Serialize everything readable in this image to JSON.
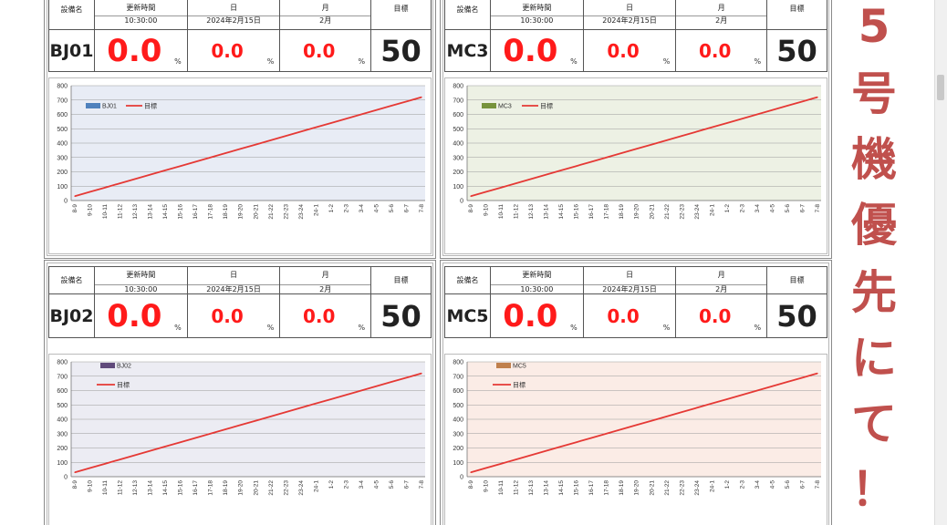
{
  "header_labels": {
    "equipment": "設備名",
    "updated": "更新時間",
    "day": "日",
    "month": "月",
    "target": "目標",
    "updated_value": "10:30:00",
    "day_value": "2024年2月15日",
    "month_value": "2月",
    "percent": "%"
  },
  "panels": [
    {
      "equipment": "BJ01",
      "current": "0.0",
      "day": "0.0",
      "month": "0.0",
      "target": "50",
      "series_label": "BJ01",
      "target_label": "目標",
      "plot_bg": "#e8ecf5",
      "series_color": "#4f81bd"
    },
    {
      "equipment": "MC3",
      "current": "0.0",
      "day": "0.0",
      "month": "0.0",
      "target": "50",
      "series_label": "MC3",
      "target_label": "目標",
      "plot_bg": "#edf1e4",
      "series_color": "#77933c"
    },
    {
      "equipment": "BJ02",
      "current": "0.0",
      "day": "0.0",
      "month": "0.0",
      "target": "50",
      "series_label": "BJ02",
      "target_label": "目標",
      "plot_bg": "#ececf3",
      "series_color": "#604a7b"
    },
    {
      "equipment": "MC5",
      "current": "0.0",
      "day": "0.0",
      "month": "0.0",
      "target": "50",
      "series_label": "MC5",
      "target_label": "目標",
      "plot_bg": "#fbece6",
      "series_color": "#c0804d"
    }
  ],
  "side_message": [
    "5",
    "号",
    "機",
    "優",
    "先",
    "に",
    "て",
    "！"
  ],
  "colors": {
    "accent_red": "#ff1a1a",
    "side_text": "#c0504d",
    "target_line": "#e53935"
  },
  "chart_data": {
    "type": "line",
    "categories": [
      "8-9",
      "9-10",
      "10-11",
      "11-12",
      "12-13",
      "13-14",
      "14-15",
      "15-16",
      "16-17",
      "17-18",
      "18-19",
      "19-20",
      "20-21",
      "21-22",
      "22-23",
      "23-24",
      "24-1",
      "1-2",
      "2-3",
      "3-4",
      "4-5",
      "5-6",
      "6-7",
      "7-8"
    ],
    "series": [
      {
        "name": "目標",
        "values": [
          30,
          60,
          90,
          120,
          150,
          180,
          210,
          240,
          270,
          300,
          330,
          360,
          390,
          420,
          450,
          480,
          510,
          540,
          570,
          600,
          630,
          660,
          690,
          720
        ]
      }
    ],
    "yticks": [
      0,
      100,
      200,
      300,
      400,
      500,
      600,
      700,
      800
    ],
    "ylim": [
      0,
      800
    ],
    "grid": true
  }
}
